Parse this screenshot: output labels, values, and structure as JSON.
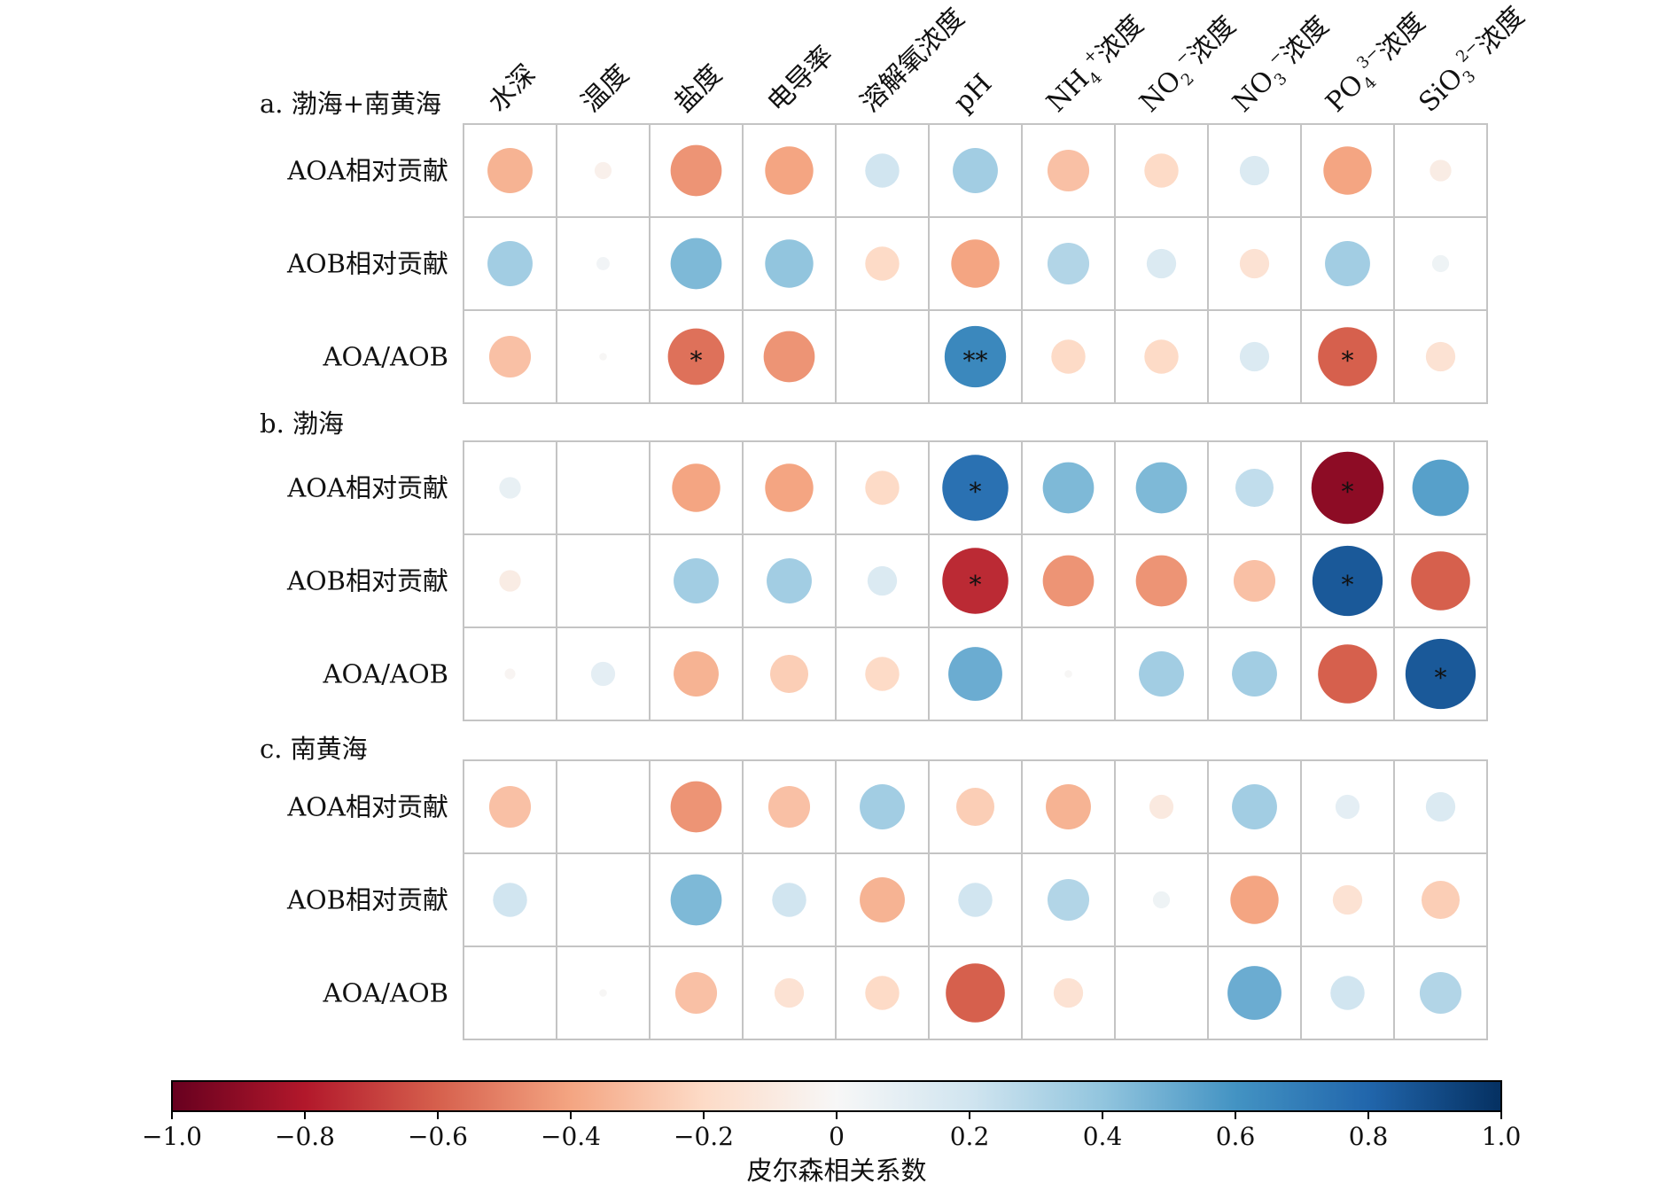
{
  "chart_data": {
    "type": "heatmap",
    "columns": [
      "水深",
      "温度",
      "盐度",
      "电导率",
      "溶解氧浓度",
      "pH",
      "NH4+浓度",
      "NO2-浓度",
      "NO3-浓度",
      "PO43-浓度",
      "SiO32-浓度"
    ],
    "column_display": [
      {
        "base": "水深"
      },
      {
        "base": "温度"
      },
      {
        "base": "盐度"
      },
      {
        "base": "电导率"
      },
      {
        "base": "溶解氧浓度"
      },
      {
        "base": "pH"
      },
      {
        "base": "NH",
        "sup": "+",
        "sub": "4",
        "rest": "浓度"
      },
      {
        "base": "NO",
        "sup": "−",
        "sub": "2",
        "rest": "浓度"
      },
      {
        "base": "NO",
        "sup": "−",
        "sub": "3",
        "rest": "浓度"
      },
      {
        "base": "PO",
        "sup": "3−",
        "sub": "4",
        "rest": "浓度"
      },
      {
        "base": "SiO",
        "sup": "2−",
        "sub": "3",
        "rest": "浓度"
      }
    ],
    "panels": [
      {
        "title": "a. 渤海+南黄海",
        "rows": [
          "AOA相对贡献",
          "AOB相对贡献",
          "AOA/AOB"
        ],
        "values": [
          [
            -0.35,
            -0.05,
            -0.45,
            -0.4,
            0.2,
            0.35,
            -0.3,
            -0.2,
            0.15,
            -0.4,
            -0.08
          ],
          [
            0.35,
            0.03,
            0.45,
            0.4,
            -0.2,
            -0.4,
            0.3,
            0.15,
            -0.15,
            0.35,
            0.05
          ],
          [
            -0.3,
            -0.01,
            -0.55,
            -0.45,
            0.0,
            0.65,
            -0.2,
            -0.2,
            0.15,
            -0.6,
            -0.15
          ]
        ],
        "stars": [
          [
            "",
            "",
            "",
            "",
            "",
            "",
            "",
            "",
            "",
            "",
            ""
          ],
          [
            "",
            "",
            "",
            "",
            "",
            "",
            "",
            "",
            "",
            "",
            ""
          ],
          [
            "",
            "",
            "*",
            "",
            "",
            "**",
            "",
            "",
            "",
            "*",
            ""
          ]
        ]
      },
      {
        "title": "b. 渤海",
        "rows": [
          "AOA相对贡献",
          "AOB相对贡献",
          "AOA/AOB"
        ],
        "values": [
          [
            0.08,
            0.0,
            -0.4,
            -0.4,
            -0.2,
            0.75,
            0.45,
            0.45,
            0.25,
            -0.9,
            0.55
          ],
          [
            -0.08,
            0.0,
            0.35,
            0.35,
            0.15,
            -0.75,
            -0.45,
            -0.45,
            -0.3,
            0.85,
            -0.6
          ],
          [
            -0.02,
            0.1,
            -0.35,
            -0.25,
            -0.2,
            0.5,
            -0.01,
            0.35,
            0.35,
            -0.6,
            0.85
          ]
        ],
        "stars": [
          [
            "",
            "",
            "",
            "",
            "",
            "*",
            "",
            "",
            "",
            "*",
            ""
          ],
          [
            "",
            "",
            "",
            "",
            "",
            "*",
            "",
            "",
            "",
            "*",
            ""
          ],
          [
            "",
            "",
            "",
            "",
            "",
            "",
            "",
            "",
            "",
            "",
            "*"
          ]
        ]
      },
      {
        "title": "c. 南黄海",
        "rows": [
          "AOA相对贡献",
          "AOB相对贡献",
          "AOA/AOB"
        ],
        "values": [
          [
            -0.3,
            0.0,
            -0.45,
            -0.3,
            0.35,
            -0.25,
            -0.35,
            -0.1,
            0.35,
            0.1,
            0.15
          ],
          [
            0.2,
            0.0,
            0.45,
            0.2,
            -0.35,
            0.2,
            0.3,
            0.05,
            -0.4,
            -0.15,
            -0.25
          ],
          [
            0.0,
            -0.01,
            -0.3,
            -0.15,
            -0.2,
            -0.6,
            -0.15,
            0.0,
            0.5,
            0.2,
            0.3
          ]
        ],
        "stars": [
          [
            "",
            "",
            "",
            "",
            "",
            "",
            "",
            "",
            "",
            "",
            ""
          ],
          [
            "",
            "",
            "",
            "",
            "",
            "",
            "",
            "",
            "",
            "",
            ""
          ],
          [
            "",
            "",
            "",
            "",
            "",
            "",
            "",
            "",
            "",
            "",
            ""
          ]
        ]
      }
    ],
    "colorbar": {
      "range": [
        -1.0,
        1.0
      ],
      "ticks": [
        "−1.0",
        "−0.8",
        "−0.6",
        "−0.4",
        "−0.2",
        "0",
        "0.2",
        "0.4",
        "0.6",
        "0.8",
        "1.0"
      ],
      "title": "皮尔森相关系数",
      "colormap": "RdBu"
    }
  }
}
